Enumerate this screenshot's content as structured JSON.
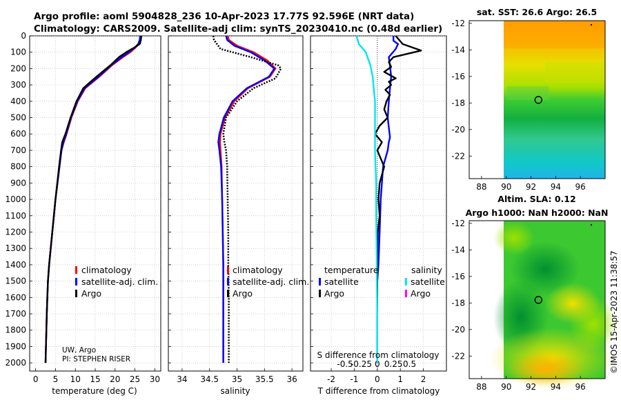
{
  "header": {
    "title_line1": "Argo profile: aoml 5904828_236 10-Apr-2023 17.77S 92.596E (NRT data)",
    "title_line2": "Climatology: CARS2009. Satellite-adj clim: synTS_20230410.nc (0.48d earlier)"
  },
  "colors": {
    "climatology": "#ff0000",
    "satellite_adj": "#0000ff",
    "argo": "#000000",
    "sat_salinity": "#00e5ee",
    "argo_salinity": "#ff00ff"
  },
  "chart_data": [
    {
      "type": "line",
      "id": "temperature",
      "xlabel": "temperature (deg C)",
      "xticks": [
        0,
        5,
        10,
        15,
        20,
        25,
        30
      ],
      "xlim": [
        -1.5,
        31.5
      ],
      "ylim": [
        2050,
        0
      ],
      "yticks": [
        0,
        100,
        200,
        300,
        400,
        500,
        600,
        700,
        800,
        900,
        1000,
        1100,
        1200,
        1300,
        1400,
        1500,
        1600,
        1700,
        1800,
        1900,
        2000
      ],
      "grid": true,
      "legend_items": [
        "climatology",
        "satellite-adj. clim.",
        "Argo"
      ],
      "legend_position": "lower-right",
      "annotations": [
        "UW, Argo",
        "PI: STEPHEN RISER"
      ],
      "series": [
        {
          "name": "climatology",
          "color": "#ff0000",
          "x": [
            26.5,
            26.4,
            26.0,
            25.0,
            23.8,
            22.0,
            19.2,
            16.0,
            12.5,
            10.6,
            9.0,
            7.8,
            7.1,
            6.5,
            6.0,
            5.0,
            4.2,
            3.8,
            3.4,
            3.1,
            2.95,
            2.8,
            2.7,
            2.6,
            2.55,
            2.5
          ],
          "y": [
            0,
            25,
            50,
            75,
            100,
            130,
            180,
            250,
            320,
            400,
            500,
            600,
            650,
            700,
            800,
            1000,
            1200,
            1300,
            1400,
            1500,
            1600,
            1700,
            1800,
            1900,
            1950,
            2000
          ]
        },
        {
          "name": "satellite-adj. clim.",
          "color": "#0000ff",
          "x": [
            26.3,
            26.2,
            25.8,
            24.8,
            23.5,
            21.7,
            19.0,
            15.8,
            12.3,
            10.5,
            8.9,
            7.7,
            7.0,
            6.5,
            6.0,
            5.0,
            4.2,
            3.8,
            3.4,
            3.1,
            2.95,
            2.8,
            2.7,
            2.6,
            2.55,
            2.5
          ],
          "y": [
            0,
            25,
            50,
            75,
            100,
            130,
            180,
            250,
            320,
            400,
            500,
            600,
            650,
            700,
            800,
            1000,
            1200,
            1300,
            1400,
            1500,
            1600,
            1700,
            1800,
            1900,
            1950,
            2000
          ]
        },
        {
          "name": "Argo",
          "color": "#000000",
          "x": [
            26.6,
            26.5,
            26.2,
            24.6,
            22.8,
            21.0,
            18.8,
            15.3,
            12.0,
            10.3,
            8.8,
            7.5,
            6.7,
            6.4,
            5.9,
            5.0,
            4.2,
            3.8,
            3.4,
            3.1,
            2.95,
            2.8,
            2.7,
            2.6,
            2.55,
            2.5
          ],
          "y": [
            0,
            25,
            50,
            75,
            100,
            130,
            180,
            250,
            320,
            400,
            500,
            600,
            650,
            700,
            800,
            1000,
            1200,
            1300,
            1400,
            1500,
            1600,
            1700,
            1800,
            1900,
            1950,
            2000
          ]
        }
      ]
    },
    {
      "type": "line",
      "id": "salinity",
      "xlabel": "salinity",
      "xticks": [
        34,
        34.5,
        35,
        35.5,
        36
      ],
      "xlim": [
        33.75,
        36.2
      ],
      "ylim": [
        2050,
        0
      ],
      "grid": true,
      "legend_items": [
        "climatology",
        "satellite-adj. clim.",
        "Argo"
      ],
      "legend_position": "lower-right",
      "series": [
        {
          "name": "climatology",
          "color": "#ff0000",
          "x": [
            34.83,
            34.85,
            35.0,
            35.3,
            35.55,
            35.7,
            35.6,
            35.2,
            34.95,
            34.78,
            34.7,
            34.69,
            34.7,
            34.72,
            34.73,
            34.74,
            34.75,
            34.75,
            34.75,
            34.75,
            34.75
          ],
          "y": [
            0,
            25,
            60,
            100,
            150,
            200,
            250,
            320,
            400,
            500,
            600,
            650,
            700,
            800,
            1000,
            1200,
            1400,
            1600,
            1800,
            1900,
            2000
          ]
        },
        {
          "name": "satellite-adj. clim.",
          "color": "#0000ff",
          "x": [
            34.8,
            34.82,
            34.95,
            35.25,
            35.5,
            35.68,
            35.58,
            35.18,
            34.92,
            34.76,
            34.68,
            34.66,
            34.68,
            34.71,
            34.73,
            34.74,
            34.75,
            34.75,
            34.75,
            34.75,
            34.75
          ],
          "y": [
            0,
            25,
            60,
            100,
            150,
            200,
            250,
            320,
            400,
            500,
            600,
            650,
            700,
            800,
            1000,
            1200,
            1400,
            1600,
            1800,
            1900,
            2000
          ]
        },
        {
          "name": "Argo",
          "color": "#000000",
          "dashed": true,
          "x": [
            34.57,
            34.58,
            34.7,
            35.25,
            35.75,
            35.8,
            35.7,
            35.3,
            35.0,
            34.8,
            34.75,
            34.77,
            34.8,
            34.82,
            34.83,
            34.84,
            34.84,
            34.85,
            34.85,
            34.85,
            34.85
          ],
          "y": [
            0,
            25,
            80,
            130,
            180,
            200,
            260,
            320,
            400,
            500,
            600,
            650,
            700,
            800,
            1000,
            1200,
            1400,
            1600,
            1800,
            1900,
            2000
          ]
        }
      ]
    },
    {
      "type": "line",
      "id": "differences",
      "xlabel": "T difference from climatology",
      "top_xlabel": "S difference from climatology",
      "xticks": [
        -2,
        -1,
        0,
        1,
        2
      ],
      "top_ticks": [
        "-0.5",
        "-0.25",
        "0",
        "0.25",
        "0.5"
      ],
      "xlim": [
        -2.9,
        3.0
      ],
      "ylim": [
        2050,
        0
      ],
      "grid": true,
      "legend_left_title": "temperature",
      "legend_right_title": "salinity",
      "legend_left": [
        "satellite",
        "Argo"
      ],
      "legend_right": [
        "satellite",
        "Argo"
      ],
      "series": [
        {
          "name": "temperature satellite",
          "color": "#0000ff",
          "x": [
            0.7,
            0.7,
            0.9,
            0.8,
            0.5,
            0.55,
            0.6,
            0.55,
            0.5,
            0.45,
            0.5,
            0.55,
            0.5,
            0.45,
            0.25,
            0.15,
            0.1,
            0.05,
            0.0,
            0.0,
            0.0,
            0.0,
            0.0,
            0.0
          ],
          "y": [
            0,
            30,
            50,
            80,
            130,
            180,
            250,
            320,
            400,
            500,
            560,
            620,
            650,
            700,
            800,
            1000,
            1200,
            1400,
            1500,
            1600,
            1700,
            1800,
            1900,
            2000
          ]
        },
        {
          "name": "temperature Argo",
          "color": "#000000",
          "x": [
            0.8,
            1.1,
            1.9,
            0.7,
            0.5,
            0.6,
            0.3,
            0.8,
            0.5,
            0.6,
            0.35,
            0.55,
            0.4,
            0.3,
            0.45,
            0.1,
            -0.1,
            0.2,
            0.0,
            0.3,
            0.1,
            0.05,
            0.1,
            0.02,
            0.0,
            0.0,
            0.0,
            0.0,
            0.0,
            0.0,
            0.0
          ],
          "y": [
            0,
            50,
            90,
            130,
            160,
            190,
            220,
            260,
            280,
            300,
            330,
            360,
            400,
            450,
            500,
            550,
            600,
            650,
            700,
            800,
            900,
            1000,
            1100,
            1200,
            1300,
            1400,
            1500,
            1600,
            1700,
            1800,
            2000
          ]
        },
        {
          "name": "salinity satellite",
          "color": "#00e5ee",
          "x": [
            -0.9,
            -0.8,
            -0.5,
            -0.3,
            -0.2,
            -0.15,
            -0.1,
            -0.1,
            -0.1,
            -0.1,
            -0.08,
            -0.05,
            -0.05,
            -0.05,
            -0.03,
            -0.02,
            0.0,
            0.0
          ],
          "y": [
            0,
            50,
            100,
            180,
            250,
            330,
            400,
            500,
            600,
            700,
            800,
            900,
            1000,
            1100,
            1300,
            1500,
            1700,
            2000
          ]
        },
        {
          "name": "salinity Argo",
          "color": "#ff00ff",
          "x": [],
          "y": []
        }
      ]
    },
    {
      "type": "heatmap",
      "id": "sst-map",
      "title": "sat. SST: 26.6 Argo: 26.5",
      "xticks": [
        88,
        90,
        92,
        94,
        96
      ],
      "yticks": [
        -12,
        -14,
        -16,
        -18,
        -20,
        -22
      ],
      "xlim": [
        87,
        98
      ],
      "ylim": [
        -23.7,
        -11.8
      ],
      "profile_location": [
        92.6,
        -17.77
      ]
    },
    {
      "type": "heatmap",
      "id": "sla-map",
      "title_line1": "Altim. SLA: 0.12",
      "title_line2": "Argo h1000: NaN h2000: NaN",
      "xticks": [
        88,
        90,
        92,
        94,
        96
      ],
      "yticks": [
        -12,
        -14,
        -16,
        -18,
        -20,
        -22
      ],
      "xlim": [
        87,
        98
      ],
      "ylim": [
        -23.7,
        -11.8
      ],
      "profile_location": [
        92.6,
        -17.77
      ]
    }
  ],
  "footer": {
    "credit": "©IMOS 15-Apr-2023 11:38:57"
  }
}
